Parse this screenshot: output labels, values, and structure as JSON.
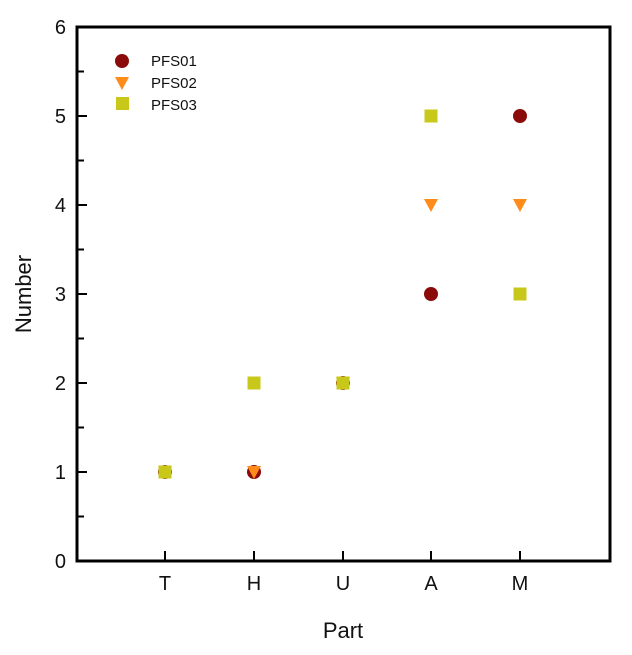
{
  "chart_data": {
    "type": "scatter",
    "title": "",
    "xlabel": "Part",
    "ylabel": "Number",
    "categories": [
      "T",
      "H",
      "U",
      "A",
      "M"
    ],
    "ylim": [
      0,
      6
    ],
    "yticks": [
      0,
      1,
      2,
      3,
      4,
      5,
      6
    ],
    "yminor_step": 0.5,
    "grid": false,
    "legend_position": "upper left",
    "series": [
      {
        "name": "PFS01",
        "marker": "circle",
        "color": "#8B0A0A",
        "values": [
          1,
          1,
          2,
          3,
          5
        ]
      },
      {
        "name": "PFS02",
        "marker": "triangle-down",
        "color": "#FF8C1A",
        "values": [
          1,
          1,
          2,
          4,
          4
        ]
      },
      {
        "name": "PFS03",
        "marker": "square",
        "color": "#C8C81A",
        "values": [
          1,
          2,
          2,
          5,
          3
        ]
      }
    ]
  },
  "axes": {
    "xlabel": "Part",
    "ylabel": "Number",
    "ytick_labels": [
      "0",
      "1",
      "2",
      "3",
      "4",
      "5",
      "6"
    ],
    "xtick_labels": [
      "T",
      "H",
      "U",
      "A",
      "M"
    ]
  },
  "legend": {
    "items": [
      {
        "label": "PFS01"
      },
      {
        "label": "PFS02"
      },
      {
        "label": "PFS03"
      }
    ]
  }
}
